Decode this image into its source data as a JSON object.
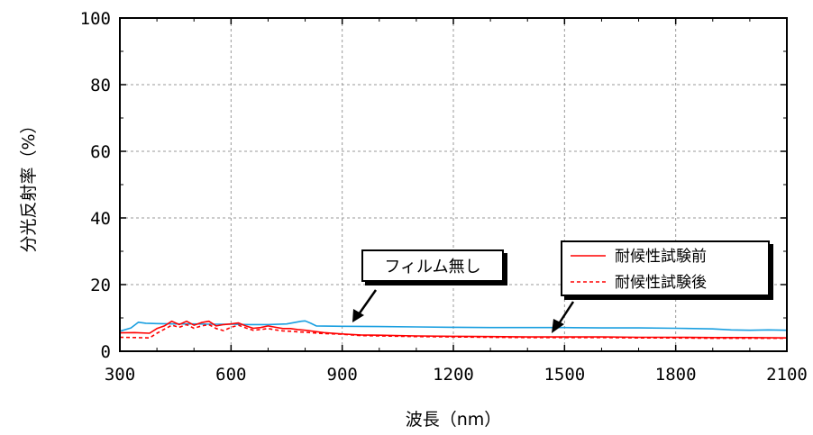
{
  "chart_data": {
    "type": "line",
    "xlabel": "波長（nm）",
    "ylabel": "分光反射率（%）",
    "xlim": [
      300,
      2100
    ],
    "ylim": [
      0,
      100
    ],
    "x_ticks": [
      300,
      600,
      900,
      1200,
      1500,
      1800,
      2100
    ],
    "y_ticks": [
      0,
      20,
      40,
      60,
      80,
      100
    ],
    "grid": true,
    "legend_position": "bottom-right",
    "series": [
      {
        "name": "",
        "color": "#1a9fe0",
        "style": "solid",
        "x": [
          300,
          330,
          350,
          370,
          400,
          450,
          500,
          550,
          600,
          650,
          700,
          750,
          770,
          790,
          800,
          815,
          830,
          900,
          1000,
          1100,
          1200,
          1300,
          1400,
          1500,
          1600,
          1700,
          1800,
          1900,
          1950,
          2000,
          2050,
          2100
        ],
        "y": [
          6.0,
          7.0,
          8.7,
          8.4,
          8.3,
          8.2,
          8.2,
          8.1,
          8.1,
          8.0,
          8.0,
          8.2,
          8.6,
          9.0,
          9.1,
          8.4,
          7.6,
          7.5,
          7.4,
          7.3,
          7.2,
          7.1,
          7.1,
          7.1,
          7.0,
          7.0,
          6.9,
          6.7,
          6.4,
          6.3,
          6.4,
          6.3
        ]
      },
      {
        "name": "耐候性試験前",
        "color": "#ff0000",
        "style": "solid",
        "x": [
          300,
          340,
          380,
          400,
          420,
          440,
          460,
          480,
          500,
          520,
          540,
          560,
          580,
          600,
          620,
          640,
          660,
          680,
          700,
          720,
          740,
          760,
          780,
          800,
          850,
          900,
          950,
          1000,
          1100,
          1200,
          1300,
          1400,
          1500,
          1600,
          1700,
          1800,
          1900,
          2000,
          2100
        ],
        "y": [
          5.5,
          5.6,
          5.4,
          6.8,
          7.6,
          9.0,
          8.0,
          9.0,
          7.8,
          8.6,
          9.0,
          7.6,
          8.0,
          8.2,
          8.5,
          7.6,
          6.9,
          7.1,
          7.6,
          7.2,
          6.8,
          6.8,
          6.5,
          6.3,
          5.6,
          5.2,
          4.9,
          4.8,
          4.6,
          4.5,
          4.4,
          4.3,
          4.3,
          4.3,
          4.2,
          4.2,
          4.1,
          4.1,
          4.0
        ]
      },
      {
        "name": "耐候性試験後",
        "color": "#ff0000",
        "style": "dashed",
        "x": [
          300,
          340,
          380,
          400,
          420,
          440,
          460,
          480,
          500,
          520,
          540,
          560,
          580,
          600,
          620,
          640,
          660,
          680,
          700,
          720,
          740,
          760,
          780,
          800,
          850,
          900,
          950,
          1000,
          1100,
          1200,
          1300,
          1400,
          1500,
          1600,
          1700,
          1800,
          1900,
          2000,
          2100
        ],
        "y": [
          4.2,
          4.1,
          4.0,
          5.4,
          6.6,
          7.8,
          7.2,
          8.0,
          6.9,
          7.6,
          8.0,
          6.8,
          6.2,
          7.2,
          7.8,
          7.0,
          6.3,
          6.5,
          6.8,
          6.4,
          6.1,
          6.0,
          5.8,
          5.7,
          5.3,
          5.1,
          4.7,
          4.6,
          4.4,
          4.3,
          4.2,
          4.1,
          4.1,
          4.1,
          4.0,
          4.0,
          3.9,
          3.9,
          3.9
        ]
      }
    ],
    "annotations": [
      {
        "text": "フィルム無し",
        "arrow_to": [
          930,
          8.0
        ]
      },
      {
        "arrow_to": [
          1460,
          4.5
        ]
      }
    ]
  }
}
